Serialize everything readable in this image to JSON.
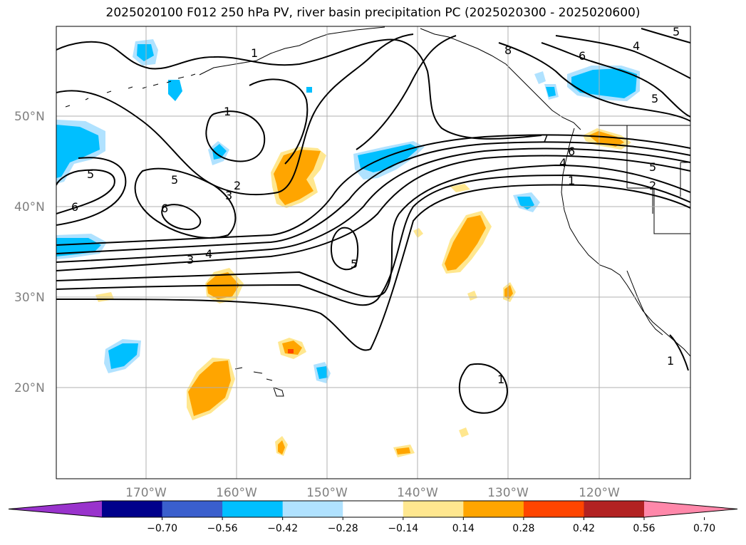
{
  "title": "2025020100 F012 250 hPa PV, river basin precipitation PC (2025020300 - 2025020600)",
  "lat_labels": [
    "50°N",
    "40°N",
    "30°N",
    "20°N"
  ],
  "lon_labels": [
    "170°W",
    "160°W",
    "150°W",
    "140°W",
    "130°W",
    "120°W"
  ],
  "colorbar": {
    "ticks": [
      "−0.70",
      "−0.56",
      "−0.42",
      "−0.28",
      "−0.14",
      "0.14",
      "0.28",
      "0.42",
      "0.56",
      "0.70"
    ],
    "colors": [
      "#9933cc",
      "#00008b",
      "#3a5fcd",
      "#00bfff",
      "#b0e2ff",
      "#ffffff",
      "#ffe78f",
      "#ffa500",
      "#ff4500",
      "#b22222",
      "#ff88aa"
    ]
  },
  "contour_labels": [
    "1",
    "1",
    "8",
    "6",
    "4",
    "5",
    "5",
    "6",
    "2",
    "3",
    "5",
    "7",
    "6",
    "4",
    "1",
    "5",
    "2",
    "6",
    "4",
    "3",
    "5",
    "1",
    "1",
    "5"
  ],
  "colors": {
    "negative_fill": "#00bfff",
    "negative_light": "#b0e2ff",
    "positive_fill": "#ffa500",
    "positive_light": "#ffe78f",
    "positive_strong": "#ff4500",
    "grid": "#b0b0b0",
    "contour": "#000000"
  }
}
